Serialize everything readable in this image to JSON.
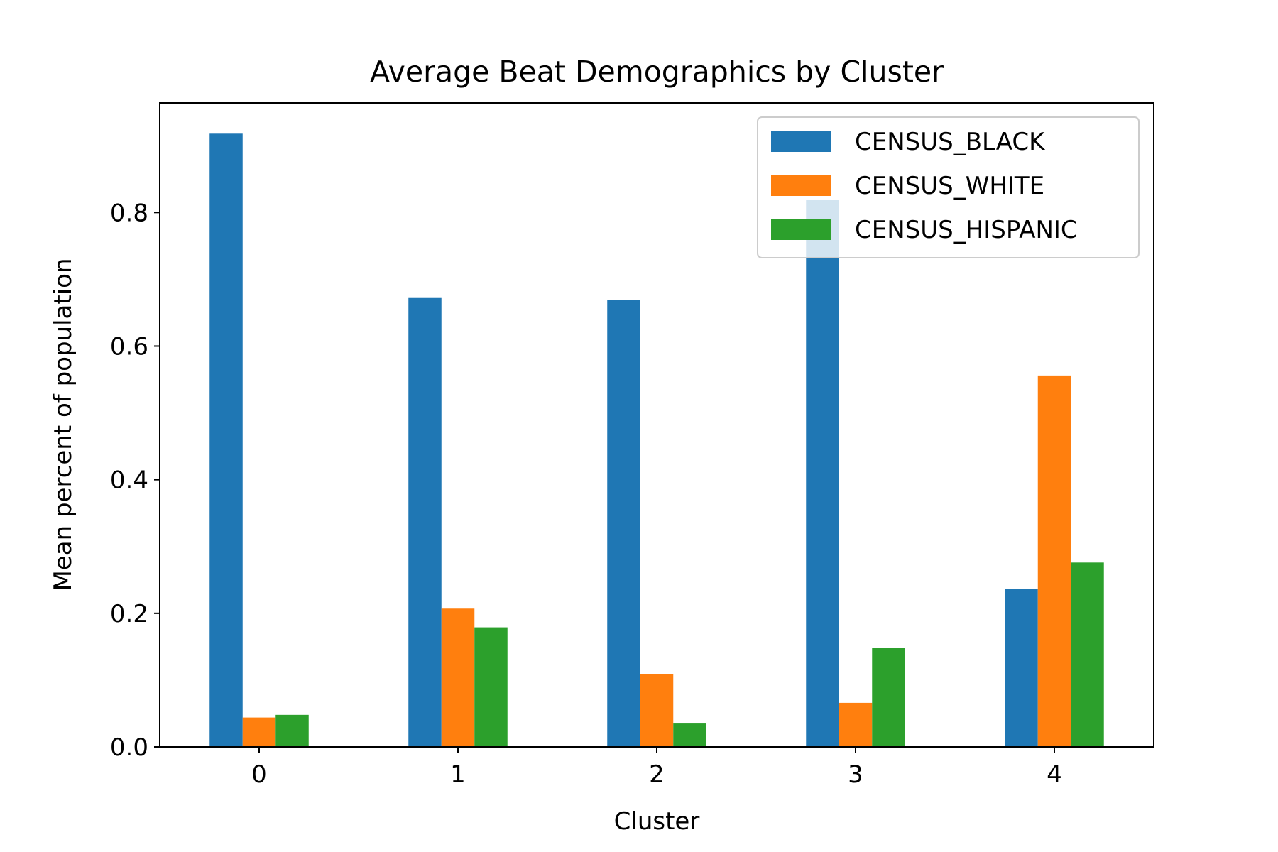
{
  "chart_data": {
    "type": "bar",
    "title": "Average Beat Demographics by Cluster",
    "xlabel": "Cluster",
    "ylabel": "Mean percent of population",
    "categories": [
      "0",
      "1",
      "2",
      "3",
      "4"
    ],
    "series": [
      {
        "name": "CENSUS_BLACK",
        "color": "#1f77b4",
        "values": [
          0.918,
          0.672,
          0.669,
          0.819,
          0.237
        ]
      },
      {
        "name": "CENSUS_WHITE",
        "color": "#ff7f0e",
        "values": [
          0.044,
          0.207,
          0.109,
          0.066,
          0.556
        ]
      },
      {
        "name": "CENSUS_HISPANIC",
        "color": "#2ca02c",
        "values": [
          0.048,
          0.179,
          0.035,
          0.148,
          0.276
        ]
      }
    ],
    "yticks": [
      0.0,
      0.2,
      0.4,
      0.6,
      0.8
    ],
    "ytick_labels": [
      "0.0",
      "0.2",
      "0.4",
      "0.6",
      "0.8"
    ],
    "ylim": [
      0,
      0.964
    ],
    "grid": false,
    "legend_position": "top-right"
  }
}
